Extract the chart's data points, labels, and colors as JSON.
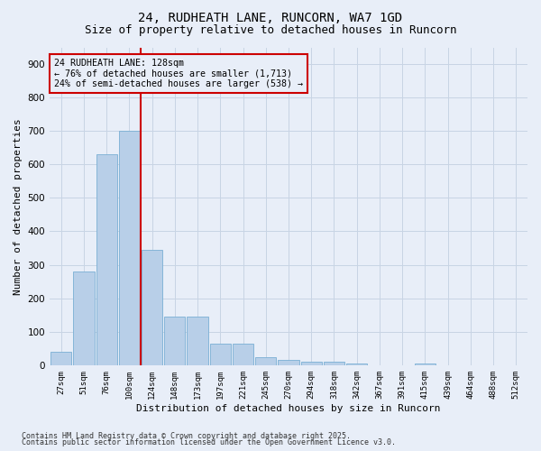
{
  "title1": "24, RUDHEATH LANE, RUNCORN, WA7 1GD",
  "title2": "Size of property relative to detached houses in Runcorn",
  "xlabel": "Distribution of detached houses by size in Runcorn",
  "ylabel": "Number of detached properties",
  "categories": [
    "27sqm",
    "51sqm",
    "76sqm",
    "100sqm",
    "124sqm",
    "148sqm",
    "173sqm",
    "197sqm",
    "221sqm",
    "245sqm",
    "270sqm",
    "294sqm",
    "318sqm",
    "342sqm",
    "367sqm",
    "391sqm",
    "415sqm",
    "439sqm",
    "464sqm",
    "488sqm",
    "512sqm"
  ],
  "values": [
    40,
    280,
    630,
    700,
    345,
    145,
    145,
    65,
    65,
    25,
    15,
    10,
    10,
    5,
    0,
    0,
    5,
    0,
    0,
    0,
    0
  ],
  "bar_color": "#b8cfe8",
  "bar_edge_color": "#7aafd4",
  "grid_color": "#c8d4e4",
  "bg_color": "#e8eef8",
  "red_line_color": "#cc0000",
  "annotation_text": "24 RUDHEATH LANE: 128sqm\n← 76% of detached houses are smaller (1,713)\n24% of semi-detached houses are larger (538) →",
  "annotation_box_color": "#cc0000",
  "footer1": "Contains HM Land Registry data © Crown copyright and database right 2025.",
  "footer2": "Contains public sector information licensed under the Open Government Licence v3.0.",
  "ylim": [
    0,
    950
  ],
  "yticks": [
    0,
    100,
    200,
    300,
    400,
    500,
    600,
    700,
    800,
    900
  ],
  "title1_fontsize": 10,
  "title2_fontsize": 9
}
